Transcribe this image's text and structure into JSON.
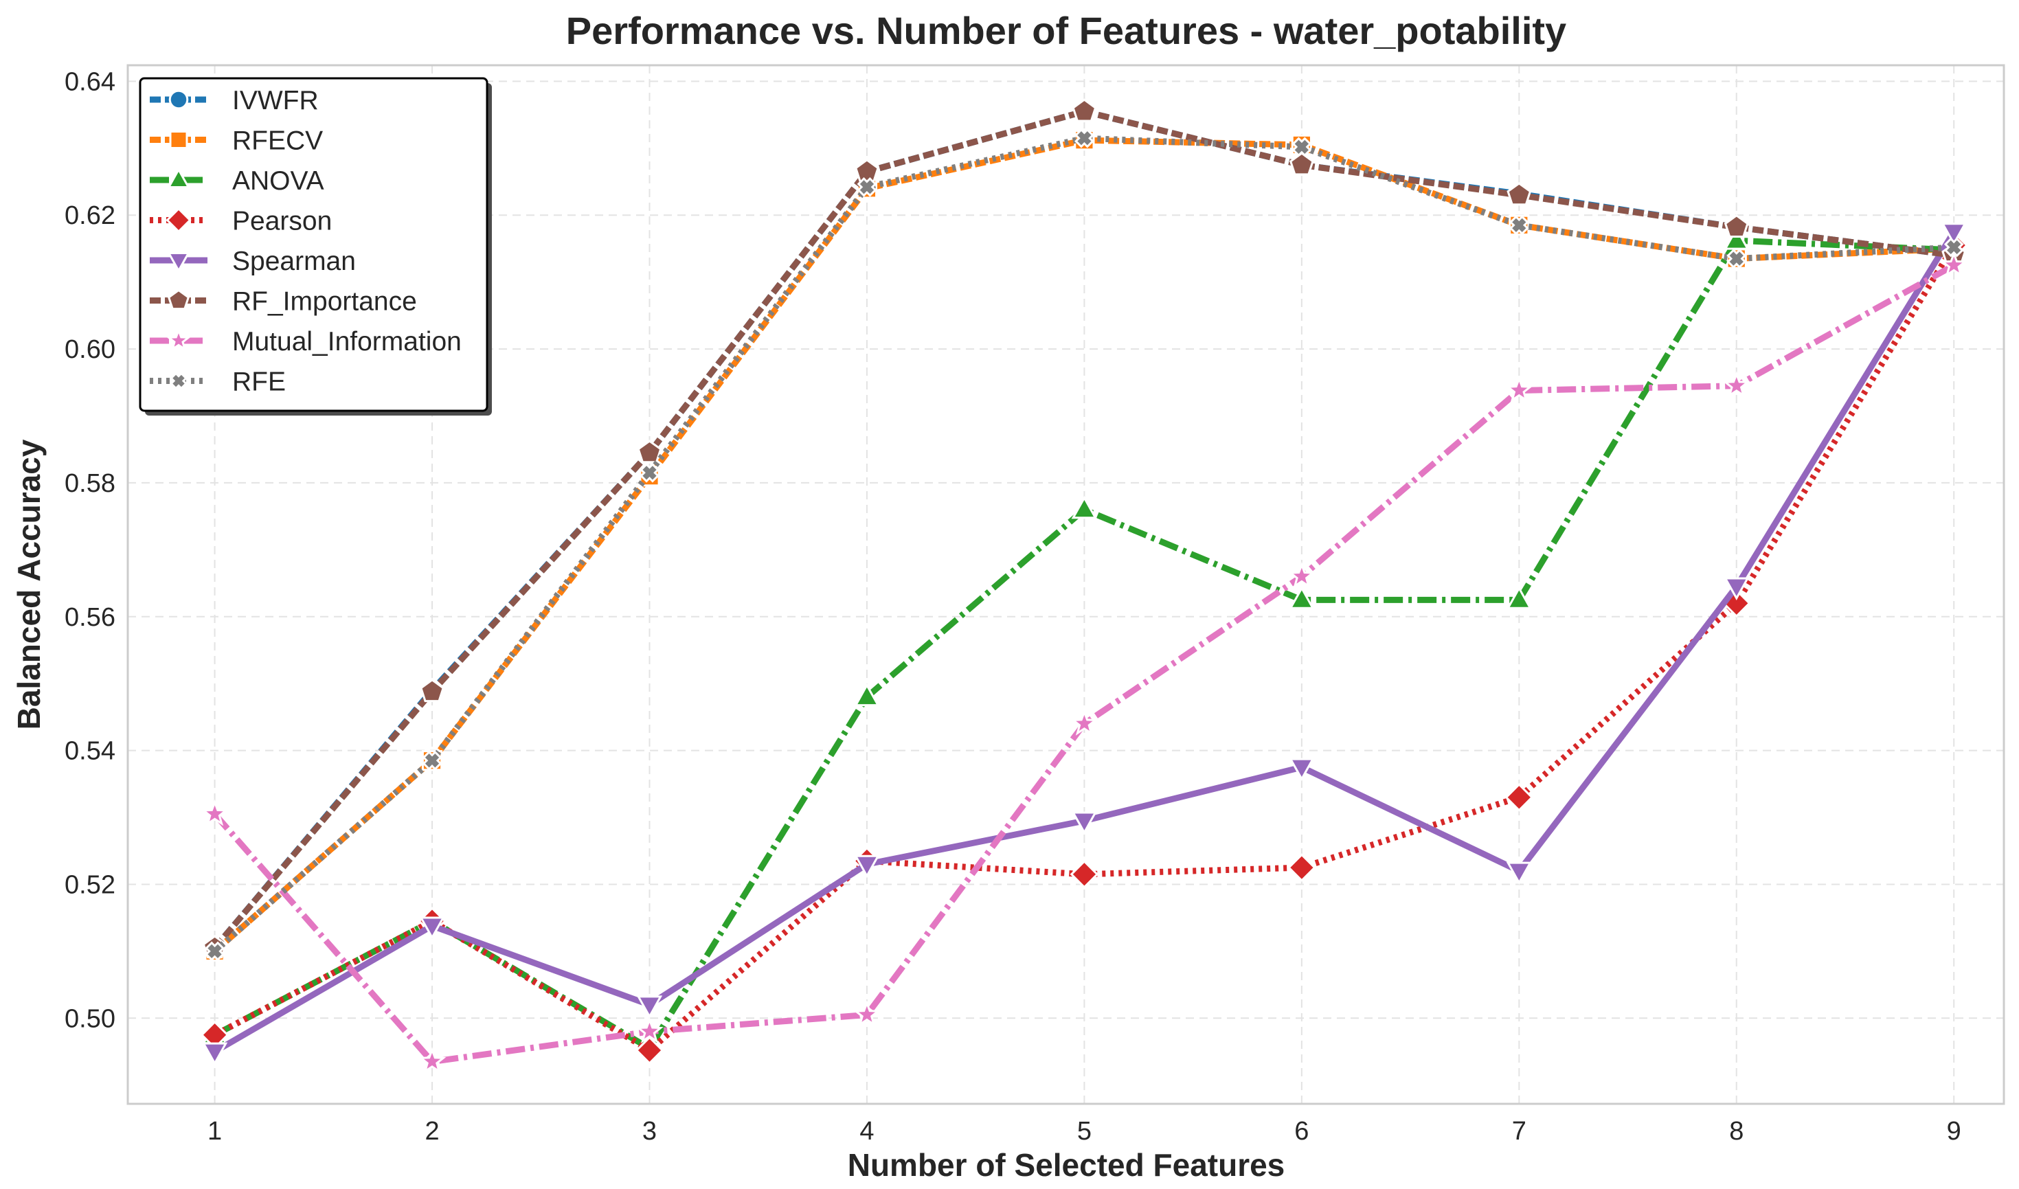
{
  "chart_data": {
    "type": "line",
    "title": "Performance vs. Number of Features - water_potability",
    "xlabel": "Number of Selected Features",
    "ylabel": "Balanced Accuracy",
    "x": [
      1,
      2,
      3,
      4,
      5,
      6,
      7,
      8,
      9
    ],
    "xticks": [
      "1",
      "2",
      "3",
      "4",
      "5",
      "6",
      "7",
      "8",
      "9"
    ],
    "yticks": [
      "0.50",
      "0.52",
      "0.54",
      "0.56",
      "0.58",
      "0.60",
      "0.62",
      "0.64"
    ],
    "ytick_values": [
      0.5,
      0.52,
      0.54,
      0.56,
      0.58,
      0.6,
      0.62,
      0.64
    ],
    "xlim": [
      0.6,
      9.23
    ],
    "ylim": [
      0.4872,
      0.6424
    ],
    "grid": true,
    "legend_position": "top-left",
    "series": [
      {
        "name": "IVWFR",
        "color": "#1f77b4",
        "marker": "circle",
        "dash": "16 6",
        "values": [
          0.5105,
          0.549,
          0.5845,
          0.6265,
          0.6355,
          0.6275,
          0.6232,
          0.6182,
          0.614
        ]
      },
      {
        "name": "RFECV",
        "color": "#ff7f0e",
        "marker": "square",
        "dash": "16 6",
        "values": [
          0.51,
          0.5385,
          0.581,
          0.624,
          0.6312,
          0.6305,
          0.6185,
          0.6135,
          0.615
        ]
      },
      {
        "name": "ANOVA",
        "color": "#2ca02c",
        "marker": "triangle-up",
        "dash": "28 8 5 8",
        "values": [
          0.4975,
          0.5145,
          0.4955,
          0.548,
          0.576,
          0.5625,
          0.5625,
          0.6162,
          0.6148
        ]
      },
      {
        "name": "Pearson",
        "color": "#d62728",
        "marker": "diamond",
        "dash": "5 7",
        "values": [
          0.4975,
          0.5145,
          0.4952,
          0.5235,
          0.5215,
          0.5225,
          0.533,
          0.562,
          0.6155
        ]
      },
      {
        "name": "Spearman",
        "color": "#9467bd",
        "marker": "triangle-down",
        "dash": "",
        "values": [
          0.495,
          0.5138,
          0.502,
          0.523,
          0.5295,
          0.5375,
          0.522,
          0.5645,
          0.6175
        ]
      },
      {
        "name": "RF_Importance",
        "color": "#8c564b",
        "marker": "pentagon",
        "dash": "16 6",
        "values": [
          0.5105,
          0.5488,
          0.5845,
          0.6265,
          0.6355,
          0.6275,
          0.623,
          0.6182,
          0.614
        ]
      },
      {
        "name": "Mutual_Information",
        "color": "#e377c2",
        "marker": "star",
        "dash": "28 8 5 8",
        "values": [
          0.5305,
          0.4935,
          0.498,
          0.5005,
          0.544,
          0.566,
          0.5938,
          0.5945,
          0.6125
        ]
      },
      {
        "name": "RFE",
        "color": "#7f7f7f",
        "marker": "x",
        "dash": "5 7",
        "values": [
          0.51,
          0.5385,
          0.5815,
          0.6242,
          0.6315,
          0.6302,
          0.6185,
          0.6135,
          0.6152
        ]
      }
    ]
  }
}
